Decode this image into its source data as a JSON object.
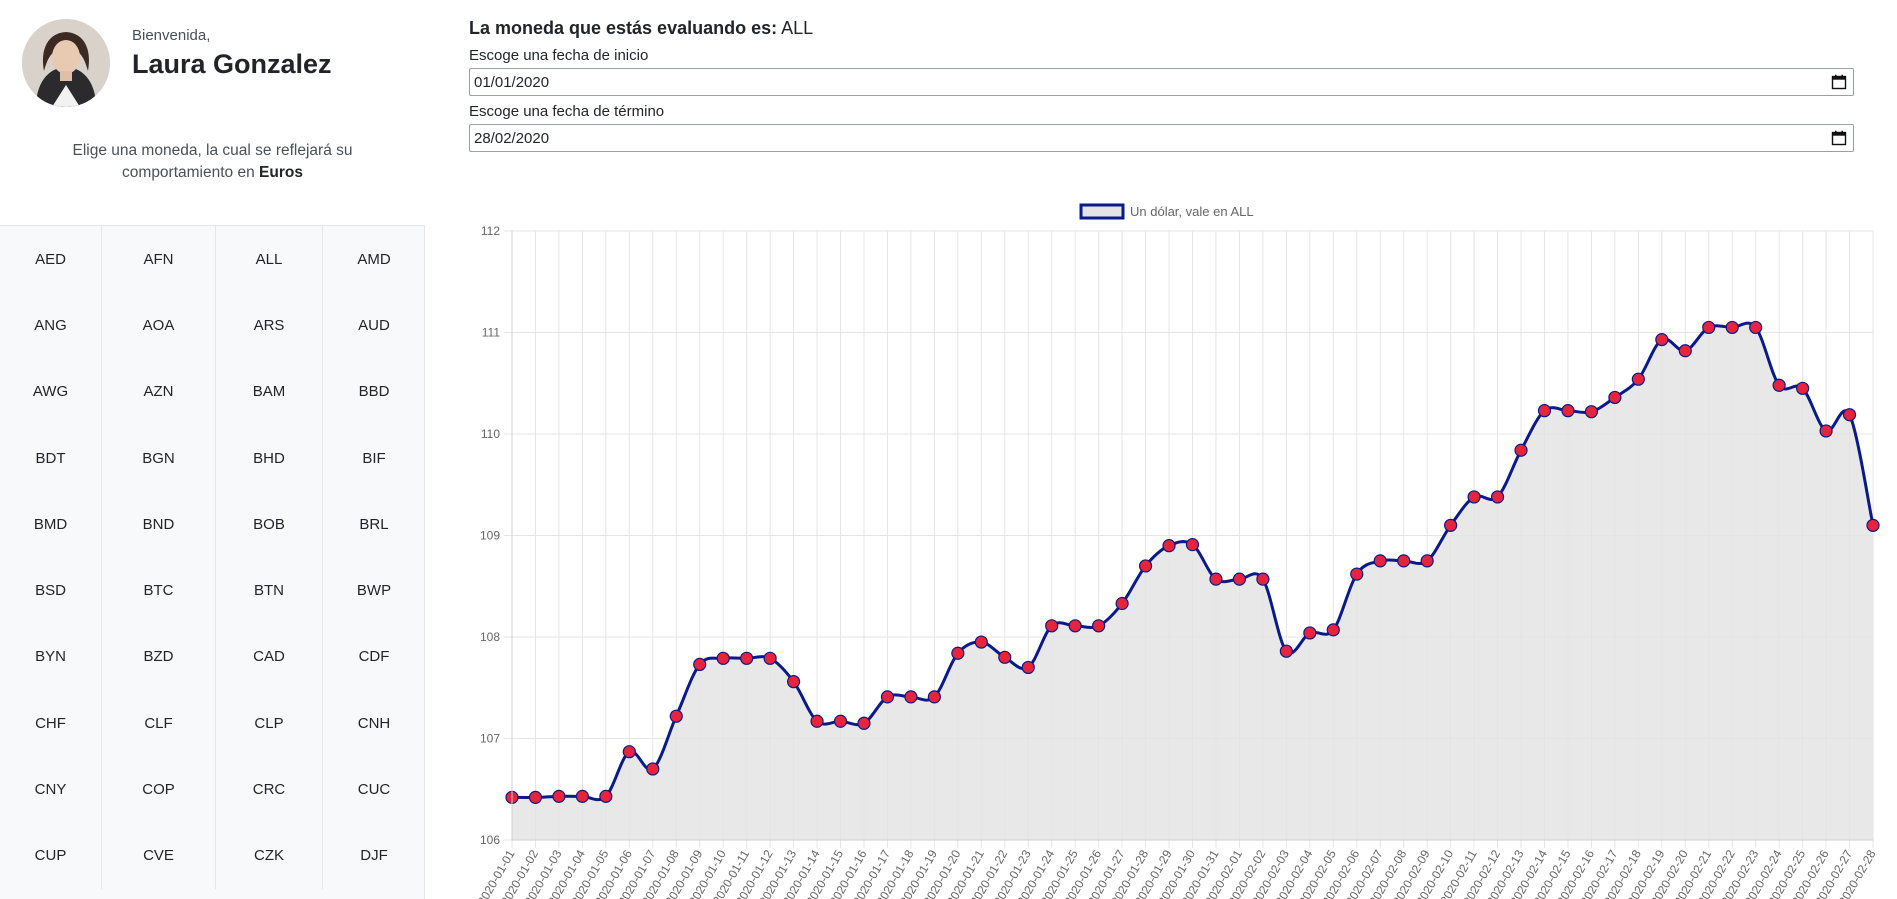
{
  "user": {
    "greeting": "Bienvenida,",
    "name": "Laura Gonzalez"
  },
  "instructions": {
    "text": "Elige una moneda, la cual se reflejará su comportamiento en ",
    "bold": "Euros"
  },
  "currencies": [
    "AED",
    "AFN",
    "ALL",
    "AMD",
    "ANG",
    "AOA",
    "ARS",
    "AUD",
    "AWG",
    "AZN",
    "BAM",
    "BBD",
    "BDT",
    "BGN",
    "BHD",
    "BIF",
    "BMD",
    "BND",
    "BOB",
    "BRL",
    "BSD",
    "BTC",
    "BTN",
    "BWP",
    "BYN",
    "BZD",
    "CAD",
    "CDF",
    "CHF",
    "CLF",
    "CLP",
    "CNH",
    "CNY",
    "COP",
    "CRC",
    "CUC",
    "CUP",
    "CVE",
    "CZK",
    "DJF"
  ],
  "main": {
    "heading_label": "La moneda que estás evaluando es:",
    "currency": "ALL",
    "start_label": "Escoge una fecha de inicio",
    "start_value": "01/01/2020",
    "end_label": "Escoge una fecha de término",
    "end_value": "28/02/2020"
  },
  "icons": {
    "calendar": "calendar-icon"
  },
  "colors": {
    "line": "#0a1a8a",
    "point_fill": "#e8243c",
    "area_fill": "#e4e4e4"
  },
  "chart_data": {
    "type": "line",
    "legend": "Un dólar, vale en ALL",
    "legend_position": "top",
    "grid": true,
    "ylim": [
      106,
      112
    ],
    "yticks": [
      106,
      107,
      108,
      109,
      110,
      111,
      112
    ],
    "x": [
      "2020-01-01",
      "2020-01-02",
      "2020-01-03",
      "2020-01-04",
      "2020-01-05",
      "2020-01-06",
      "2020-01-07",
      "2020-01-08",
      "2020-01-09",
      "2020-01-10",
      "2020-01-11",
      "2020-01-12",
      "2020-01-13",
      "2020-01-14",
      "2020-01-15",
      "2020-01-16",
      "2020-01-17",
      "2020-01-18",
      "2020-01-19",
      "2020-01-20",
      "2020-01-21",
      "2020-01-22",
      "2020-01-23",
      "2020-01-24",
      "2020-01-25",
      "2020-01-26",
      "2020-01-27",
      "2020-01-28",
      "2020-01-29",
      "2020-01-30",
      "2020-01-31",
      "2020-02-01",
      "2020-02-02",
      "2020-02-03",
      "2020-02-04",
      "2020-02-05",
      "2020-02-06",
      "2020-02-07",
      "2020-02-08",
      "2020-02-09",
      "2020-02-10",
      "2020-02-11",
      "2020-02-12",
      "2020-02-13",
      "2020-02-14",
      "2020-02-15",
      "2020-02-16",
      "2020-02-17",
      "2020-02-18",
      "2020-02-19",
      "2020-02-20",
      "2020-02-21",
      "2020-02-22",
      "2020-02-23",
      "2020-02-24",
      "2020-02-25",
      "2020-02-26",
      "2020-02-27",
      "2020-02-28"
    ],
    "values": [
      106.42,
      106.42,
      106.43,
      106.43,
      106.43,
      106.87,
      106.7,
      107.22,
      107.73,
      107.79,
      107.79,
      107.79,
      107.56,
      107.17,
      107.17,
      107.15,
      107.41,
      107.41,
      107.41,
      107.84,
      107.95,
      107.8,
      107.7,
      108.11,
      108.11,
      108.11,
      108.33,
      108.7,
      108.9,
      108.91,
      108.57,
      108.57,
      108.57,
      107.86,
      108.04,
      108.07,
      108.62,
      108.75,
      108.75,
      108.75,
      109.1,
      109.38,
      109.38,
      109.84,
      110.23,
      110.23,
      110.22,
      110.36,
      110.54,
      110.93,
      110.82,
      111.05,
      111.05,
      111.05,
      110.48,
      110.45,
      110.03,
      110.19,
      109.1
    ]
  }
}
